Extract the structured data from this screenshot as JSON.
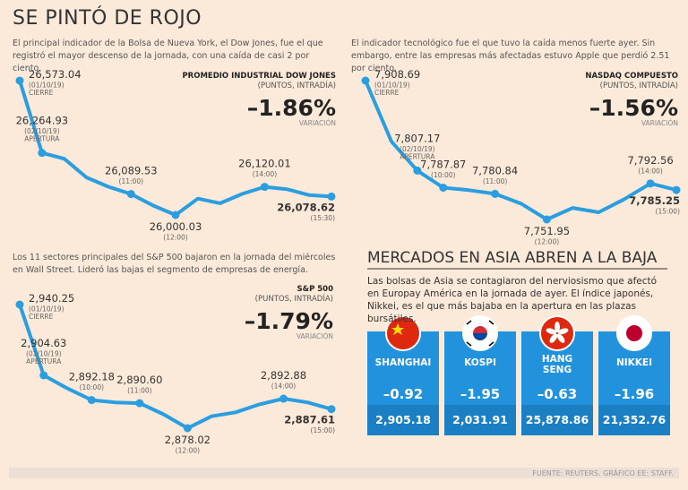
{
  "header": {
    "title": "SE PINTÓ DE ROJO"
  },
  "charts": [
    {
      "title": "PROMEDIO INDUSTRIAL DOW JONES",
      "subtitle": "(PUNTOS, INTRADÍA)",
      "change": "–1.86%",
      "change_caption": "VARIACIÓN",
      "description": "El principal indicador de la Bolsa de Nueva York, el Dow Jones, fue el que registró el mayor descenso de la jornada, con una caída de casi 2 por ciento.",
      "values": [
        26573.04,
        26264.93,
        26240,
        26160,
        26120,
        26089.53,
        26040,
        26000.03,
        26070,
        26050,
        26090,
        26120.01,
        26110,
        26085,
        26078.62
      ],
      "value_labels": [
        "26,573.04",
        "26,264.93",
        null,
        null,
        null,
        "26,089.53",
        null,
        "26,000.03",
        null,
        null,
        null,
        "26,120.01",
        null,
        null,
        "26,078.62"
      ],
      "dates": [
        "(01/10/19)",
        "(02/10/19)",
        null,
        null,
        null,
        "(11:00)",
        null,
        "(12:00)",
        null,
        null,
        null,
        "(14:00)",
        null,
        null,
        "(15:30)"
      ],
      "tags": [
        "CIERRE",
        "APERTURA",
        null,
        null,
        null,
        null,
        null,
        null,
        null,
        null,
        null,
        null,
        null,
        null,
        null
      ]
    },
    {
      "title": "NASDAQ COMPUESTO",
      "subtitle": "(PUNTOS, INTRADÍA)",
      "change": "–1.56%",
      "change_caption": "VARIACIÓN",
      "description": "El indicador tecnológico fue el que tuvo la caída menos fuerte ayer. Sin embargo, entre las empresas más afectadas estuvo Apple que perdió 2.51 por ciento.",
      "values": [
        7908.69,
        7840,
        7807.17,
        7787.87,
        7785,
        7780.84,
        7770,
        7751.95,
        7765,
        7760,
        7775,
        7792.56,
        7785.25
      ],
      "value_labels": [
        "7,908.69",
        null,
        "7,807.17",
        "7,787.87",
        null,
        "7,780.84",
        null,
        "7,751.95",
        null,
        null,
        null,
        "7,792.56",
        "7,785.25"
      ],
      "dates": [
        "(01/10/19)",
        null,
        "(02/10/19)",
        "(10:00)",
        null,
        "(11:00)",
        null,
        "(12:00)",
        null,
        null,
        null,
        "(14:00)",
        "(15:00)"
      ],
      "tags": [
        "CIERRE",
        null,
        "APERTURA",
        null,
        null,
        null,
        null,
        null,
        null,
        null,
        null,
        null,
        null
      ]
    },
    {
      "title": "S&P 500",
      "subtitle": "(PUNTOS, INTRADÍA)",
      "change": "–1.79%",
      "change_caption": "VARIACIÓN",
      "description": "Los 11 sectores principales del S&P 500 bajaron en la jornada del miércoles en Wall Street. Lideró las bajas el segmento de empresas de energía.",
      "values": [
        2940.25,
        2904.63,
        2898,
        2892.18,
        2891,
        2890.6,
        2885,
        2878.02,
        2884,
        2886,
        2890,
        2892.88,
        2891,
        2887.61
      ],
      "value_labels": [
        "2,940.25",
        "2,904.63",
        null,
        "2,892.18",
        null,
        "2,890.60",
        null,
        "2,878.02",
        null,
        null,
        null,
        "2,892.88",
        null,
        "2,887.61"
      ],
      "dates": [
        "(01/10/19)",
        "(02/10/19)",
        null,
        "(10:00)",
        null,
        "(11:00)",
        null,
        "(12:00)",
        null,
        null,
        null,
        "(14:00)",
        null,
        "(15:00)"
      ],
      "tags": [
        "CIERRE",
        "APERTURA",
        null,
        null,
        null,
        null,
        null,
        null,
        null,
        null,
        null,
        null,
        null,
        null
      ]
    }
  ],
  "asia": {
    "title": "MERCADOS EN ASIA ABREN A LA BAJA",
    "text": "Las bolsas de Asia se contagiaron del nerviosismo que afectó en Europay América en la jornada de ayer. El índice japonés, Nikkei, es el que más bajaba en la apertura en las plazas bursátiles.",
    "markets": [
      {
        "name": "SHANGHAI",
        "change": "–0.92",
        "value": "2,905.18"
      },
      {
        "name": "KOSPI",
        "change": "–1.95",
        "value": "2,031.91"
      },
      {
        "name": "HANG SENG",
        "change": "–0.63",
        "value": "25,878.86"
      },
      {
        "name": "NIKKEI",
        "change": "–1.96",
        "value": "21,352.76"
      }
    ]
  },
  "footer": "FUENTE: REUTERS. GRÁFICO EE: STAFF."
}
